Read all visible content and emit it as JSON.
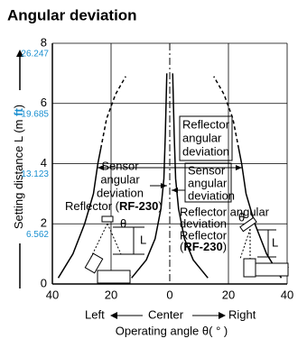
{
  "chart_data": {
    "type": "line",
    "title": "Angular deviation",
    "xlim": [
      -40,
      40
    ],
    "xticks": [
      {
        "value": -40,
        "label": "40"
      },
      {
        "value": -20,
        "label": "20"
      },
      0,
      {
        "value": 20,
        "label": "20"
      },
      40
    ],
    "ylim": [
      0,
      8
    ],
    "yticks": [
      0,
      2,
      4,
      6,
      8
    ],
    "yticks_ft": [
      {
        "value": 2,
        "label": "6.562"
      },
      {
        "value": 4,
        "label": "13.123"
      },
      {
        "value": 6,
        "label": "19.685"
      },
      {
        "value": 8,
        "label": "26.247"
      }
    ],
    "grid": true,
    "ylabel": [
      "Setting distance L (m",
      "ft",
      ")"
    ],
    "xlabel": {
      "left": "Left",
      "center": "Center",
      "right": "Right",
      "text": "Operating angle θ( ° )"
    },
    "series": [
      {
        "style": "solid",
        "x": [
          -38,
          -33,
          -29,
          -26,
          -24.5,
          -23.5
        ],
        "y": [
          0.2,
          1,
          2,
          3,
          4,
          4.5
        ]
      },
      {
        "style": "dashed",
        "x": [
          -23.5,
          -21.5,
          -18.5,
          -15
        ],
        "y": [
          4.5,
          5.5,
          6.3,
          6.9
        ]
      },
      {
        "style": "solid",
        "x": [
          38,
          33,
          29,
          26,
          24.5,
          23.5
        ],
        "y": [
          0.2,
          1,
          2,
          3,
          4,
          4.5
        ]
      },
      {
        "style": "dashed",
        "x": [
          23.5,
          21.5,
          18.5,
          15
        ],
        "y": [
          4.5,
          5.5,
          6.3,
          6.9
        ]
      },
      {
        "style": "solid",
        "x": [
          -13,
          -8,
          -5,
          -3,
          -2,
          -1.5,
          -1
        ],
        "y": [
          0.2,
          0.8,
          1.5,
          2.5,
          3.5,
          5,
          7
        ]
      },
      {
        "style": "solid",
        "x": [
          13,
          8,
          5,
          3,
          2,
          1.5,
          1
        ],
        "y": [
          0.2,
          0.8,
          1.5,
          2.5,
          3.5,
          5,
          7
        ]
      }
    ],
    "annotations": {
      "reflector_box": [
        "Reflector",
        "angular",
        "deviation"
      ],
      "sensor_box": [
        "Sensor",
        "angular",
        "deviation"
      ],
      "sensor_left": [
        "Sensor",
        "angular",
        "deviation"
      ],
      "reflector_left": [
        "Reflector (",
        "RF-230",
        ")"
      ],
      "reflector_right": [
        "Reflector angular",
        "deviation",
        "Reflector",
        "(",
        "RF-230",
        ")"
      ],
      "theta": "θ",
      "L": "L",
      "sensor": "Sensor"
    }
  }
}
